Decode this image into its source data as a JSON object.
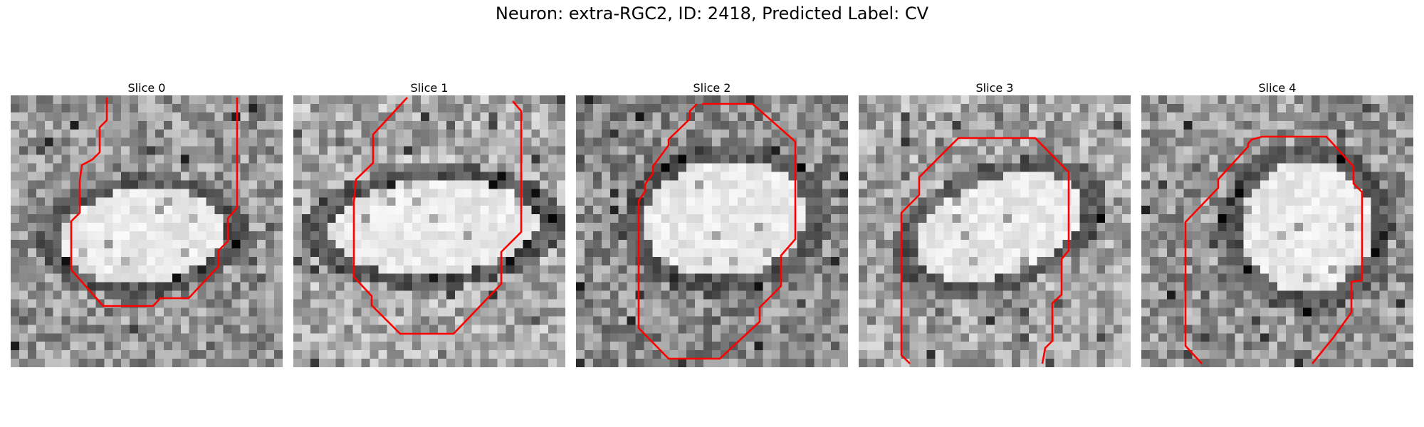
{
  "figure": {
    "title": "Neuron: extra-RGC2, ID: 2418, Predicted Label: CV",
    "contour_color": "#ff0000"
  },
  "panels": [
    {
      "title": "Slice 0"
    },
    {
      "title": "Slice 1"
    },
    {
      "title": "Slice 2"
    },
    {
      "title": "Slice 3"
    },
    {
      "title": "Slice 4"
    }
  ]
}
